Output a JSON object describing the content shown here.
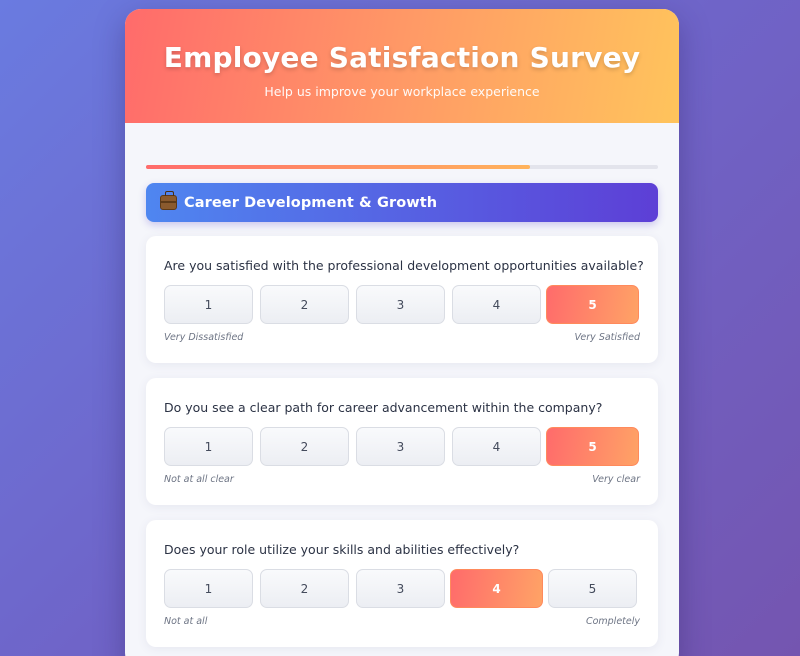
{
  "header": {
    "title": "Employee Satisfaction Survey",
    "subtitle": "Help us improve your workplace experience"
  },
  "progress": {
    "percent": 75
  },
  "section": {
    "title": "Career Development & Growth",
    "icon": "briefcase-icon"
  },
  "questions": [
    {
      "text": "Are you satisfied with the professional development opportunities available?",
      "options": [
        "1",
        "2",
        "3",
        "4",
        "5"
      ],
      "selected": "5",
      "min_label": "Very Dissatisfied",
      "max_label": "Very Satisfied"
    },
    {
      "text": "Do you see a clear path for career advancement within the company?",
      "options": [
        "1",
        "2",
        "3",
        "4",
        "5"
      ],
      "selected": "5",
      "min_label": "Not at all clear",
      "max_label": "Very clear"
    },
    {
      "text": "Does your role utilize your skills and abilities effectively?",
      "options": [
        "1",
        "2",
        "3",
        "4",
        "5"
      ],
      "selected": "4",
      "min_label": "Not at all",
      "max_label": "Completely"
    }
  ],
  "colors": {
    "accent_start": "#ff6b6b",
    "accent_end": "#ffc45c",
    "section_start": "#4f86f0",
    "section_end": "#5d3fd6"
  }
}
